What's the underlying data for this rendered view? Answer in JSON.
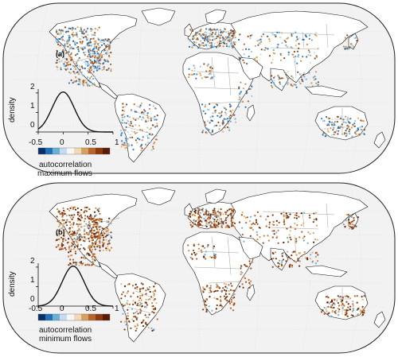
{
  "figure": {
    "panels": [
      {
        "id": "a",
        "panel_label": "(a)",
        "caption_line1": "autocorrelation",
        "caption_line2": "maximum flows",
        "ylabel": "density",
        "density_yticks": [
          "2",
          "1",
          "0"
        ],
        "density_xticks": [
          "-0.5",
          "0",
          "0.5",
          "1"
        ],
        "density_mode": 0.0
      },
      {
        "id": "b",
        "panel_label": "(b)",
        "caption_line1": "autocorrelation",
        "caption_line2": "minimum flows",
        "ylabel": "density",
        "density_yticks": [
          "2",
          "1",
          "0"
        ],
        "density_xticks": [
          "-0.5",
          "0",
          "0.5",
          "1"
        ],
        "density_mode": 0.2
      }
    ],
    "colorbar_colors": [
      "#08306b",
      "#2171b5",
      "#6baed6",
      "#c6dbef",
      "#f7f7f7",
      "#f0d9b5",
      "#d8a060",
      "#b8652a",
      "#8c3a12",
      "#5a1a05"
    ]
  }
}
